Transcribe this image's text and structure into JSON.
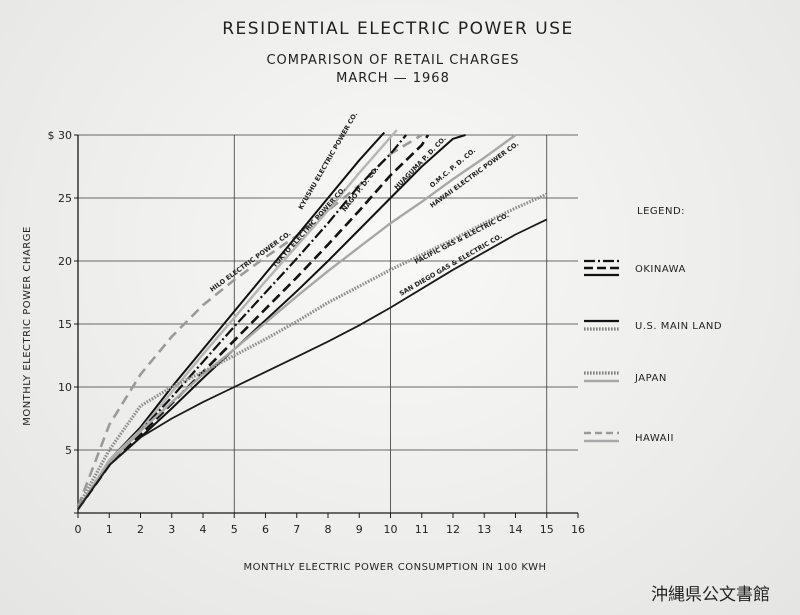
{
  "chart_data": {
    "type": "line",
    "title": "RESIDENTIAL ELECTRIC POWER USE",
    "subtitle_lines": [
      "COMPARISON OF RETAIL CHARGES",
      "MARCH — 1968"
    ],
    "xlabel": "MONTHLY ELECTRIC POWER CONSUMPTION IN 100 KWH",
    "ylabel": "MONTHLY ELECTRIC POWER CHARGE",
    "xlim": [
      0,
      16
    ],
    "ylim": [
      0,
      30
    ],
    "x_ticks": [
      "0",
      "1",
      "2",
      "3",
      "4",
      "5",
      "6",
      "7",
      "8",
      "9",
      "10",
      "11",
      "12",
      "13",
      "14",
      "15",
      "16"
    ],
    "y_ticks": [
      "",
      "5",
      "10",
      "15",
      "20",
      "25",
      "$ 30"
    ],
    "grid": true,
    "series": [
      {
        "name": "HILO ELECTRIC POWER CO.",
        "group": "HAWAII",
        "points": [
          [
            0,
            0.5
          ],
          [
            1,
            7
          ],
          [
            2,
            11
          ],
          [
            3,
            14
          ],
          [
            4,
            16.5
          ],
          [
            5,
            18.5
          ],
          [
            6,
            20.3
          ],
          [
            7,
            22
          ],
          [
            8,
            24
          ],
          [
            9,
            26
          ],
          [
            10,
            28.5
          ],
          [
            11,
            30
          ]
        ]
      },
      {
        "name": "KYUSHU ELECTRIC POWER CO.",
        "group": "JAPAN",
        "points": [
          [
            0,
            0.3
          ],
          [
            1,
            4.2
          ],
          [
            2,
            6.8
          ],
          [
            3,
            10
          ],
          [
            4,
            13
          ],
          [
            5,
            16
          ],
          [
            6,
            19
          ],
          [
            7,
            22
          ],
          [
            8,
            25
          ],
          [
            9,
            28
          ],
          [
            9.8,
            30.2
          ]
        ]
      },
      {
        "name": "TOKYO ELECTRIC POWER CO.",
        "group": "JAPAN",
        "points": [
          [
            0,
            0.3
          ],
          [
            1,
            4.2
          ],
          [
            2,
            6.6
          ],
          [
            3,
            9.6
          ],
          [
            4,
            12.6
          ],
          [
            5,
            15.5
          ],
          [
            6,
            18.4
          ],
          [
            7,
            21.2
          ],
          [
            8,
            24
          ],
          [
            9,
            27
          ],
          [
            10.2,
            30.4
          ]
        ]
      },
      {
        "name": "NAGO P. D. CO.",
        "group": "OKINAWA",
        "points": [
          [
            0,
            0.3
          ],
          [
            1,
            4
          ],
          [
            2,
            6.5
          ],
          [
            3,
            9.2
          ],
          [
            4,
            12
          ],
          [
            5,
            14.8
          ],
          [
            6,
            17.5
          ],
          [
            7,
            20.2
          ],
          [
            8,
            23
          ],
          [
            9,
            26
          ],
          [
            10,
            28.5
          ],
          [
            10.5,
            30
          ]
        ]
      },
      {
        "name": "HUAGUMA P. D. CO.",
        "group": "OKINAWA",
        "points": [
          [
            0,
            0.3
          ],
          [
            1,
            3.8
          ],
          [
            2,
            6.2
          ],
          [
            3,
            8.7
          ],
          [
            4,
            11.2
          ],
          [
            5,
            13.7
          ],
          [
            6,
            16.2
          ],
          [
            7,
            18.7
          ],
          [
            8,
            21.3
          ],
          [
            9,
            24
          ],
          [
            10,
            26.8
          ],
          [
            11,
            29.2
          ],
          [
            11.2,
            30
          ]
        ]
      },
      {
        "name": "O.M.C. P. D. CO.",
        "group": "OKINAWA",
        "points": [
          [
            0,
            0.3
          ],
          [
            1,
            3.8
          ],
          [
            2,
            6
          ],
          [
            3,
            8.3
          ],
          [
            4,
            10.7
          ],
          [
            5,
            13
          ],
          [
            6,
            15.3
          ],
          [
            7,
            17.6
          ],
          [
            8,
            20
          ],
          [
            9,
            22.5
          ],
          [
            10,
            25
          ],
          [
            11,
            27.5
          ],
          [
            12,
            29.7
          ],
          [
            12.4,
            30
          ]
        ]
      },
      {
        "name": "HAWAII ELECTRIC POWER CO.",
        "group": "HAWAII",
        "points": [
          [
            0,
            0.3
          ],
          [
            1,
            4
          ],
          [
            2,
            6.5
          ],
          [
            3,
            8.8
          ],
          [
            4,
            11
          ],
          [
            5,
            13
          ],
          [
            6,
            15.1
          ],
          [
            7,
            17.2
          ],
          [
            8,
            19.2
          ],
          [
            9,
            21.1
          ],
          [
            10,
            23
          ],
          [
            11,
            24.7
          ],
          [
            12,
            26.5
          ],
          [
            13,
            28.2
          ],
          [
            14,
            30
          ]
        ]
      },
      {
        "name": "PACIFIC GAS & ELECTRIC CO.",
        "group": "U.S. MAIN LAND",
        "points": [
          [
            0,
            0.5
          ],
          [
            1,
            5
          ],
          [
            2,
            8.5
          ],
          [
            3,
            10
          ],
          [
            4,
            11.2
          ],
          [
            5,
            12.5
          ],
          [
            6,
            13.8
          ],
          [
            7,
            15.2
          ],
          [
            8,
            16.7
          ],
          [
            9,
            18
          ],
          [
            10,
            19.3
          ],
          [
            11,
            20.5
          ],
          [
            12,
            21.7
          ],
          [
            13,
            23
          ],
          [
            14,
            24.2
          ],
          [
            15,
            25.3
          ]
        ]
      },
      {
        "name": "SAN DIEGO GAS & ELECTRIC CO.",
        "group": "U.S. MAIN LAND",
        "points": [
          [
            0,
            0.3
          ],
          [
            1,
            3.8
          ],
          [
            2,
            6
          ],
          [
            3,
            7.5
          ],
          [
            4,
            8.8
          ],
          [
            5,
            10
          ],
          [
            6,
            11.2
          ],
          [
            7,
            12.4
          ],
          [
            8,
            13.6
          ],
          [
            9,
            14.9
          ],
          [
            10,
            16.3
          ],
          [
            11,
            17.8
          ],
          [
            12,
            19.3
          ],
          [
            13,
            20.7
          ],
          [
            14,
            22.1
          ],
          [
            15,
            23.3
          ]
        ]
      }
    ],
    "legend": {
      "title": "LEGEND:",
      "placement": "right",
      "entries": [
        {
          "label": "OKINAWA",
          "styles": [
            "dashdot",
            "dashed",
            "solid"
          ]
        },
        {
          "label": "U.S. MAIN LAND",
          "styles": [
            "solid",
            "hatched"
          ]
        },
        {
          "label": "JAPAN",
          "styles": [
            "hatched",
            "gray-solid"
          ]
        },
        {
          "label": "HAWAII",
          "styles": [
            "gray-dashed",
            "gray-solid"
          ]
        }
      ]
    }
  },
  "stamp": "沖縄県公文書館"
}
